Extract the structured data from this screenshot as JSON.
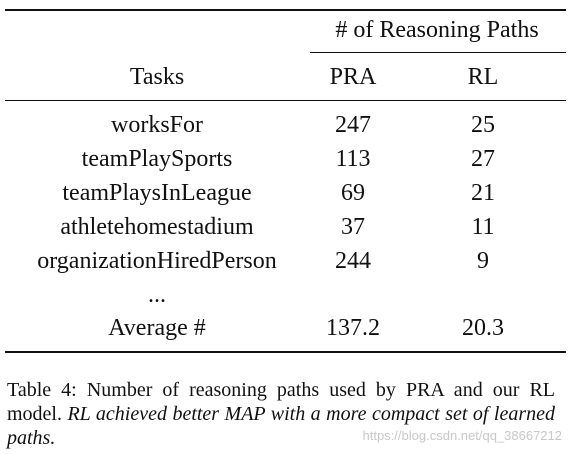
{
  "table": {
    "group_header": "# of Reasoning Paths",
    "columns": [
      "Tasks",
      "PRA",
      "RL"
    ],
    "rows": [
      [
        "worksFor",
        "247",
        "25"
      ],
      [
        "teamPlaySports",
        "113",
        "27"
      ],
      [
        "teamPlaysInLeague",
        "69",
        "21"
      ],
      [
        "athletehomestadium",
        "37",
        "11"
      ],
      [
        "organizationHiredPerson",
        "244",
        "9"
      ],
      [
        "...",
        "",
        ""
      ]
    ],
    "average": [
      "Average #",
      "137.2",
      "20.3"
    ]
  },
  "caption": {
    "label": "Table 4:",
    "text": "Number of reasoning paths used by PRA and our RL model.",
    "emphasis": "RL achieved better MAP with a more compact set of learned paths."
  },
  "watermark": "https://blog.csdn.net/qq_38667212"
}
